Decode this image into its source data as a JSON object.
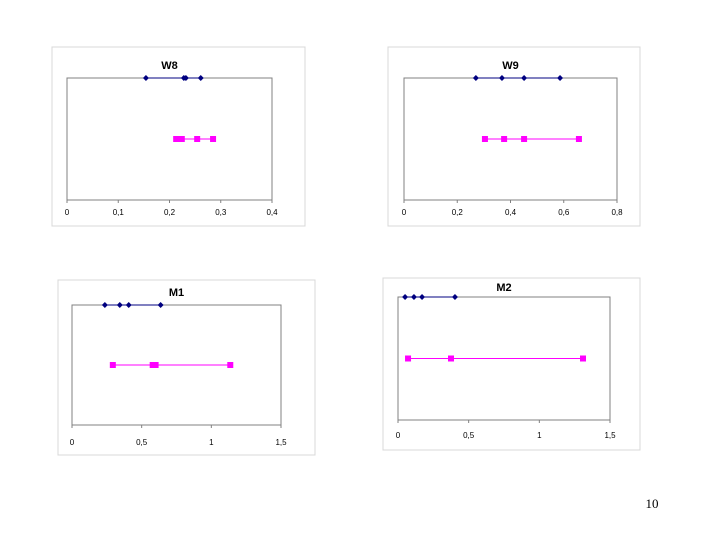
{
  "chart_data": [
    {
      "type": "scatter",
      "title": "W8",
      "xlim": [
        0,
        0.4
      ],
      "ylim": [
        0,
        2
      ],
      "xticks": [
        0,
        {
          "value": 0.1,
          "label": "0,1"
        },
        {
          "value": 0.2,
          "label": "0,2"
        },
        {
          "value": 0.3,
          "label": "0,3"
        },
        {
          "value": 0.4,
          "label": "0,4"
        }
      ],
      "series": [
        {
          "color": "#000080",
          "marker": "diamond",
          "x": [
            0.154,
            0.228,
            0.232,
            0.261
          ],
          "values": [
            2,
            2,
            2,
            2
          ]
        },
        {
          "color": "#ff00ff",
          "marker": "square",
          "x": [
            0.213,
            0.224,
            0.254,
            0.285
          ],
          "values": [
            1,
            1,
            1,
            1
          ]
        }
      ]
    },
    {
      "type": "scatter",
      "title": "W9",
      "xlim": [
        0,
        0.8
      ],
      "ylim": [
        0,
        2
      ],
      "xticks": [
        0,
        {
          "value": 0.2,
          "label": "0,2"
        },
        {
          "value": 0.4,
          "label": "0,4"
        },
        {
          "value": 0.6,
          "label": "0,6"
        },
        {
          "value": 0.8,
          "label": "0,8"
        }
      ],
      "series": [
        {
          "color": "#000080",
          "marker": "diamond",
          "x": [
            0.27,
            0.368,
            0.451,
            0.586
          ],
          "values": [
            2,
            2,
            2,
            2
          ]
        },
        {
          "color": "#ff00ff",
          "marker": "square",
          "x": [
            0.304,
            0.376,
            0.451,
            0.657
          ],
          "values": [
            1,
            1,
            1,
            1
          ]
        }
      ]
    },
    {
      "type": "scatter",
      "title": "M1",
      "xlim": [
        0,
        1.5
      ],
      "ylim": [
        0,
        2
      ],
      "xticks": [
        0,
        {
          "value": 0.5,
          "label": "0,5"
        },
        1,
        {
          "value": 1.5,
          "label": "1,5"
        }
      ],
      "series": [
        {
          "color": "#000080",
          "marker": "diamond",
          "x": [
            0.236,
            0.343,
            0.407,
            0.636
          ],
          "values": [
            2,
            2,
            2,
            2
          ]
        },
        {
          "color": "#ff00ff",
          "marker": "square",
          "x": [
            0.293,
            0.579,
            0.6,
            1.136
          ],
          "values": [
            1,
            1,
            1,
            1
          ]
        }
      ]
    },
    {
      "type": "scatter",
      "title": "M2",
      "xlim": [
        0,
        1.5
      ],
      "ylim": [
        0,
        2
      ],
      "xticks": [
        0,
        {
          "value": 0.5,
          "label": "0,5"
        },
        1,
        {
          "value": 1.5,
          "label": "1,5"
        }
      ],
      "series": [
        {
          "color": "#000080",
          "marker": "diamond",
          "x": [
            0.05,
            0.113,
            0.17,
            0.403
          ],
          "values": [
            2,
            2,
            2,
            2
          ]
        },
        {
          "color": "#ff00ff",
          "marker": "square",
          "x": [
            0.071,
            0.375,
            1.309
          ],
          "values": [
            1,
            1,
            1
          ]
        }
      ]
    }
  ],
  "page_number": "10"
}
